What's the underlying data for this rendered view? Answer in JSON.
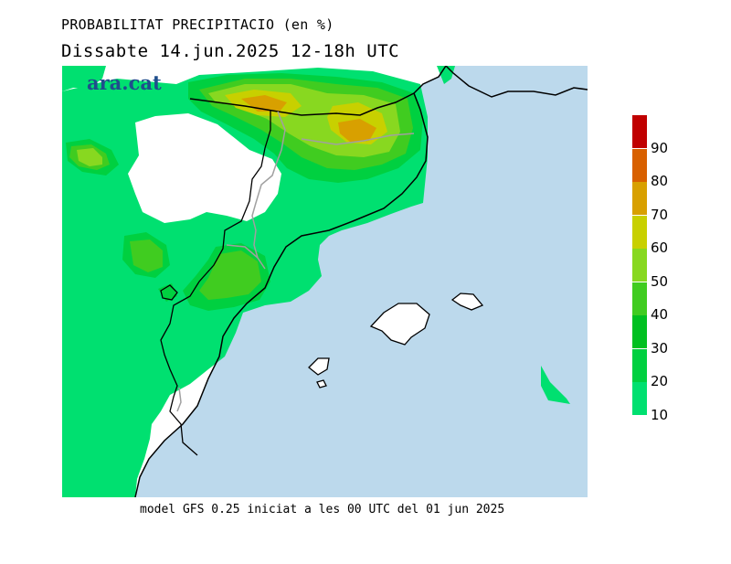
{
  "header": {
    "title": "PROBABILITAT PRECIPITACIO (en %)",
    "subtitle": "Dissabte   14.jun.2025 12-18h UTC"
  },
  "footer": {
    "text": "model GFS 0.25 iniciat a les 00 UTC del 01 jun 2025"
  },
  "logo": {
    "text": "ara.cat"
  },
  "colors": {
    "sea": "#bcd9ec",
    "land": "#ffffff",
    "border": "#000000",
    "admin": "#a0a0a0"
  },
  "legend": {
    "bins": [
      {
        "label": "10",
        "color": "#00e070"
      },
      {
        "label": "20",
        "color": "#00d040"
      },
      {
        "label": "30",
        "color": "#00c020"
      },
      {
        "label": "40",
        "color": "#40cc20"
      },
      {
        "label": "50",
        "color": "#88d820"
      },
      {
        "label": "60",
        "color": "#c8d000"
      },
      {
        "label": "70",
        "color": "#d8a000"
      },
      {
        "label": "80",
        "color": "#d86000"
      },
      {
        "label": "90",
        "color": "#c00000"
      }
    ]
  }
}
